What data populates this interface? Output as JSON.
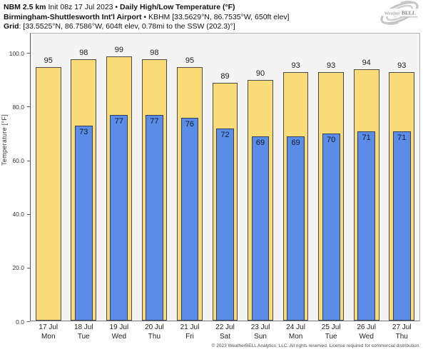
{
  "header": {
    "line1_bold": "NBM 2.5 km",
    "line1_regular": " Init 08z 17 Jul 2023 • ",
    "line1_bold2": "Daily High/Low Temperature (°F)",
    "line2_bold": "Birmingham-Shuttlesworth Int'l Airport",
    "line2_regular": " • KBHM [33.5629°N, 86.7535°W, 650ft elev]",
    "line3_bold": "Grid",
    "line3_regular": ": [33.5525°N, 86.7586°W, 604ft elev, 0.78mi to the SSW (202.3)°]"
  },
  "logo": {
    "text_weather": "Weather",
    "text_bell": "BELL"
  },
  "colors": {
    "high_fill": "#f9dc77",
    "low_fill": "#5b8de8",
    "high_border": "#4a4a4a",
    "low_border": "#2f3f5c",
    "plot_bg": "#f4f4f4"
  },
  "chart_data": {
    "type": "bar",
    "title": "Daily High/Low Temperature (°F)",
    "subtitle": "NBM 2.5 km Init 08z 17 Jul 2023 — Birmingham-Shuttlesworth Int'l Airport (KBHM)",
    "xlabel": "",
    "ylabel": "Temperature [°F]",
    "ylim": [
      0,
      107.5
    ],
    "grid": false,
    "legend": "none",
    "yticks": [
      {
        "value": 0,
        "label": "0.0"
      },
      {
        "value": 20,
        "label": "20.0"
      },
      {
        "value": 40,
        "label": "40.0"
      },
      {
        "value": 60,
        "label": "60.0"
      },
      {
        "value": 80,
        "label": "80.0"
      },
      {
        "value": 100,
        "label": "100.0"
      }
    ],
    "categories": [
      "17 Jul Mon",
      "18 Jul Tue",
      "19 Jul Wed",
      "20 Jul Thu",
      "21 Jul Fri",
      "22 Jul Sat",
      "23 Jul Sun",
      "24 Jul Mon",
      "25 Jul Tue",
      "26 Jul Wed",
      "27 Jul Thu"
    ],
    "x_labels": [
      {
        "date": "17 Jul",
        "dow": "Mon"
      },
      {
        "date": "18 Jul",
        "dow": "Tue"
      },
      {
        "date": "19 Jul",
        "dow": "Wed"
      },
      {
        "date": "20 Jul",
        "dow": "Thu"
      },
      {
        "date": "21 Jul",
        "dow": "Fri"
      },
      {
        "date": "22 Jul",
        "dow": "Sat"
      },
      {
        "date": "23 Jul",
        "dow": "Sun"
      },
      {
        "date": "24 Jul",
        "dow": "Mon"
      },
      {
        "date": "25 Jul",
        "dow": "Tue"
      },
      {
        "date": "26 Jul",
        "dow": "Wed"
      },
      {
        "date": "27 Jul",
        "dow": "Thu"
      }
    ],
    "series": [
      {
        "name": "Daily High",
        "values": [
          95,
          98,
          99,
          98,
          95,
          89,
          90,
          93,
          93,
          94,
          93
        ]
      },
      {
        "name": "Daily Low",
        "values": [
          null,
          73,
          77,
          77,
          76,
          72,
          69,
          69,
          70,
          71,
          71
        ]
      }
    ]
  },
  "footer": {
    "copyright": "© 2023 WeatherBELL Analytics, LLC. All rights reserved. License required for commercial distribution."
  }
}
